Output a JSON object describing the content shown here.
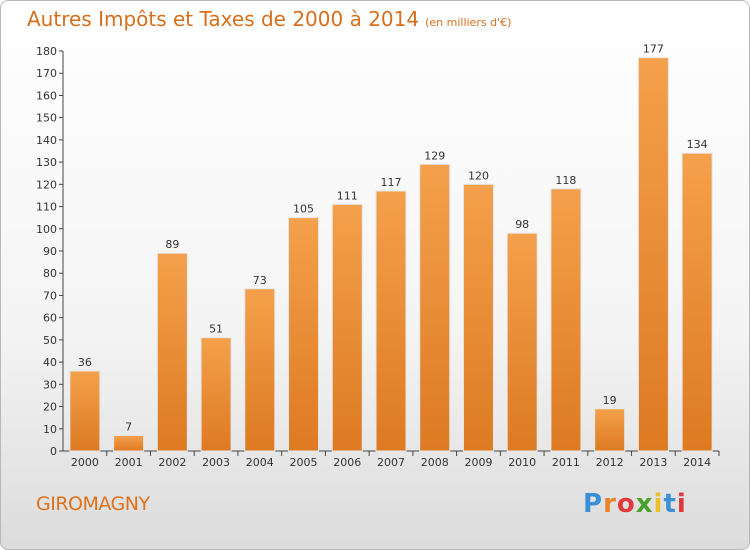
{
  "header": {
    "title": "Autres Impôts et Taxes de 2000 à 2014",
    "unit": "(en milliers d'€)"
  },
  "footer": {
    "commune": "GIROMAGNY",
    "brand": {
      "letters": [
        "P",
        "r",
        "o",
        "x",
        "i",
        "t",
        "i"
      ],
      "letter_colors": [
        "#3a8fd6",
        "#e8842c",
        "#e23a3a",
        "#4aa02c",
        "#e8c12c",
        "#3a8fd6",
        "#e23a3a"
      ]
    }
  },
  "colors": {
    "bar": "#f4a04c",
    "bar_dark": "#dd7a22",
    "text": "#d66f1e",
    "axis": "#444444",
    "grid": "#dddddd"
  },
  "chart_data": {
    "type": "bar",
    "categories": [
      "2000",
      "2001",
      "2002",
      "2003",
      "2004",
      "2005",
      "2006",
      "2007",
      "2008",
      "2009",
      "2010",
      "2011",
      "2012",
      "2013",
      "2014"
    ],
    "values": [
      36,
      7,
      89,
      51,
      73,
      105,
      111,
      117,
      129,
      120,
      98,
      118,
      19,
      177,
      134
    ],
    "data_labels": [
      "36",
      "7",
      "89",
      "51",
      "73",
      "105",
      "111",
      "117",
      "129",
      "120",
      "98",
      "118",
      "19",
      "177",
      "134"
    ],
    "y_ticks": [
      0,
      10,
      20,
      30,
      40,
      50,
      60,
      70,
      80,
      90,
      100,
      110,
      120,
      130,
      140,
      150,
      160,
      170,
      180
    ],
    "ylim": [
      0,
      180
    ],
    "grid": false
  }
}
